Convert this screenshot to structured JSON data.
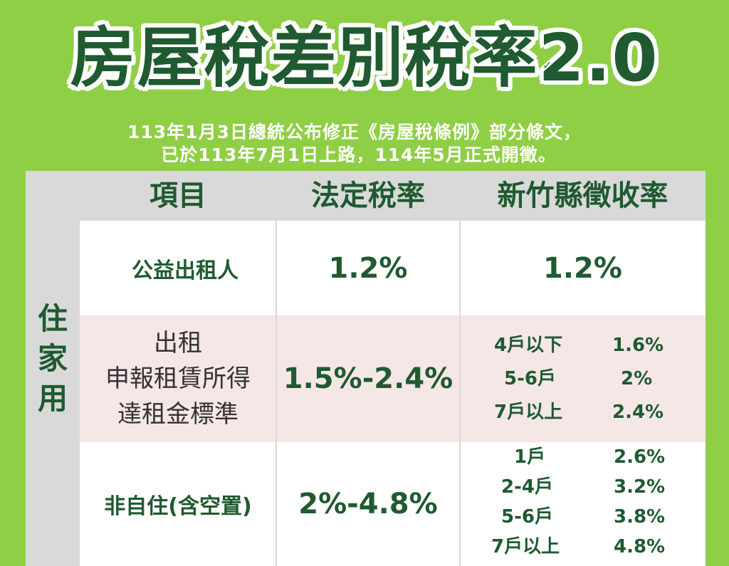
{
  "title": "房屋稅差別稅率2.0",
  "subtitle_line1": "113年1月3日總統公布修正《房屋稅條例》部分條文，",
  "subtitle_line2": "已於113年7月1日上路，114年5月正式開徵。",
  "headers": {
    "item": "項目",
    "statutory": "法定稅率",
    "hsinchu": "新竹縣徵收率"
  },
  "category": "住家用",
  "rows": {
    "public_landlord": {
      "label": "公益出租人",
      "statutory": "1.2%",
      "hsinchu": "1.2%"
    },
    "rental": {
      "label_lines": [
        "出租",
        "申報租賃所得",
        "達租金標準"
      ],
      "statutory": "1.5%-2.4%",
      "tiers": [
        {
          "units": "4戶以下",
          "rate": "1.6%"
        },
        {
          "units": "5-6戶",
          "rate": "2%"
        },
        {
          "units": "7戶以上",
          "rate": "2.4%"
        }
      ]
    },
    "non_self_use": {
      "label": "非自住(含空置)",
      "statutory": "2%-4.8%",
      "tiers": [
        {
          "units": "1戶",
          "rate": "2.6%"
        },
        {
          "units": "2-4戶",
          "rate": "3.2%"
        },
        {
          "units": "5-6戶",
          "rate": "3.8%"
        },
        {
          "units": "7戶以上",
          "rate": "4.8%"
        }
      ]
    }
  },
  "colors": {
    "background": "#8fcf45",
    "text_green": "#1f5a30",
    "panel_gray": "#d9d9d9",
    "pink_row": "#f6e7e7"
  }
}
